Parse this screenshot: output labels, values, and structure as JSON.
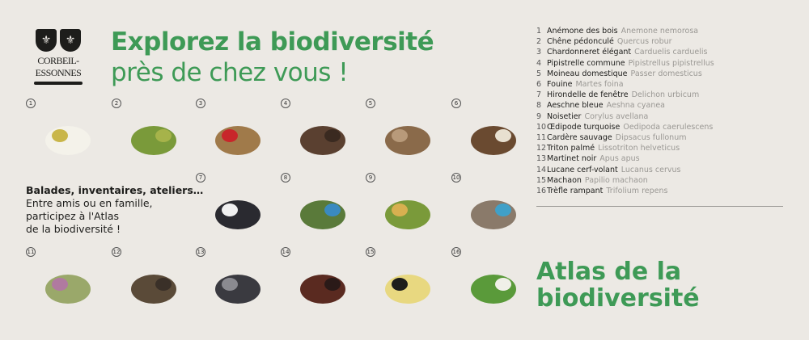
{
  "logo": {
    "name": "CORBEIL-ESSONNES"
  },
  "header": {
    "title_line1": "Explorez la biodiversité",
    "title_line2": "près de chez vous !"
  },
  "pitch": {
    "bold": "Balades, inventaires, ateliers…",
    "lines": [
      "Entre amis ou en famille,",
      "participez à l'Atlas",
      "de la biodiversité !"
    ]
  },
  "species": [
    {
      "n": "1",
      "common": "Anémone des bois",
      "latin": "Anemone nemorosa",
      "color": "#f4f2ea",
      "accent": "#c9b64a"
    },
    {
      "n": "2",
      "common": "Chêne pédonculé",
      "latin": "Quercus robur",
      "color": "#7a9a3a",
      "accent": "#a6b34a"
    },
    {
      "n": "3",
      "common": "Chardonneret élégant",
      "latin": "Carduelis carduelis",
      "color": "#a07a4a",
      "accent": "#c8262a"
    },
    {
      "n": "4",
      "common": "Pipistrelle commune",
      "latin": "Pipistrellus pipistrellus",
      "color": "#5a4030",
      "accent": "#3a2a20"
    },
    {
      "n": "5",
      "common": "Moineau domestique",
      "latin": "Passer domesticus",
      "color": "#8a6a4a",
      "accent": "#b89a7a"
    },
    {
      "n": "6",
      "common": "Fouine",
      "latin": "Martes foina",
      "color": "#6a4a30",
      "accent": "#e8e0d0"
    },
    {
      "n": "7",
      "common": "Hirondelle de fenêtre",
      "latin": "Delichon urbicum",
      "color": "#2a2a30",
      "accent": "#f0f0f0"
    },
    {
      "n": "8",
      "common": "Aeschne bleue",
      "latin": "Aeshna cyanea",
      "color": "#5a7a3a",
      "accent": "#3a8ac0"
    },
    {
      "n": "9",
      "common": "Noisetier",
      "latin": "Corylus avellana",
      "color": "#7a9a3a",
      "accent": "#d8b050"
    },
    {
      "n": "10",
      "common": "Œdipode turquoise",
      "latin": "Oedipoda caerulescens",
      "color": "#8a7a6a",
      "accent": "#40a0c8"
    },
    {
      "n": "11",
      "common": "Cardère sauvage",
      "latin": "Dipsacus fullonum",
      "color": "#9aa86a",
      "accent": "#b07aa0"
    },
    {
      "n": "12",
      "common": "Triton palmé",
      "latin": "Lissotriton helveticus",
      "color": "#5a4a38",
      "accent": "#3a3028"
    },
    {
      "n": "13",
      "common": "Martinet noir",
      "latin": "Apus apus",
      "color": "#3a3a40",
      "accent": "#8a8a90"
    },
    {
      "n": "14",
      "common": "Lucane cerf-volant",
      "latin": "Lucanus cervus",
      "color": "#5a2a20",
      "accent": "#2a1a18"
    },
    {
      "n": "15",
      "common": "Machaon",
      "latin": "Papilio machaon",
      "color": "#e8d880",
      "accent": "#1d1d1b"
    },
    {
      "n": "16",
      "common": "Trèfle rampant",
      "latin": "Trifolium repens",
      "color": "#5a9a3a",
      "accent": "#f0f0e8"
    }
  ],
  "atlas": {
    "line1": "Atlas de la",
    "line2": "biodiversité"
  }
}
